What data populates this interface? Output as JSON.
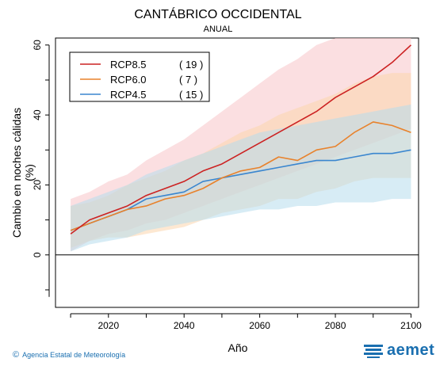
{
  "header": {
    "title": "CANTÁBRICO OCCIDENTAL",
    "subtitle": "ANUAL"
  },
  "footer": {
    "credit_symbol": "©",
    "credit": "Agencia Estatal de Meteorología",
    "logo": "aemet"
  },
  "colors": {
    "rcp85": "#cc2222",
    "rcp60": "#e8822c",
    "rcp45": "#3a86cf",
    "rcp85_band": "#f7c4c8",
    "rcp60_band": "#fbd6ad",
    "rcp45_band": "#b6dcec",
    "brand": "#1a6fb0"
  },
  "chart_data": {
    "type": "line",
    "xlabel": "Año",
    "ylabel": "Cambio en noches cálidas (%)",
    "xlim": [
      2006,
      2102
    ],
    "ylim": [
      -15,
      62
    ],
    "xticks": [
      2020,
      2040,
      2060,
      2080,
      2100
    ],
    "yticks": [
      0,
      20,
      40,
      60
    ],
    "zero_line": 0,
    "legend_position": "top-left",
    "series": [
      {
        "name": "RCP8.5",
        "count": "( 19 )",
        "color": "#cc2222",
        "x": [
          2010,
          2015,
          2020,
          2025,
          2030,
          2035,
          2040,
          2045,
          2050,
          2055,
          2060,
          2065,
          2070,
          2075,
          2080,
          2085,
          2090,
          2095,
          2100
        ],
        "y": [
          6,
          10,
          12,
          14,
          17,
          19,
          21,
          24,
          26,
          29,
          32,
          35,
          38,
          41,
          45,
          48,
          51,
          55,
          60
        ],
        "band_low": [
          1,
          4,
          6,
          7,
          9,
          10,
          12,
          14,
          16,
          18,
          20,
          22,
          24,
          26,
          28,
          30,
          32,
          34,
          36
        ],
        "band_high": [
          16,
          18,
          21,
          23,
          27,
          30,
          33,
          37,
          41,
          45,
          49,
          53,
          56,
          60,
          62,
          62,
          62,
          62,
          62
        ]
      },
      {
        "name": "RCP6.0",
        "count": "(   7 )",
        "color": "#e8822c",
        "x": [
          2010,
          2015,
          2020,
          2025,
          2030,
          2035,
          2040,
          2045,
          2050,
          2055,
          2060,
          2065,
          2070,
          2075,
          2080,
          2085,
          2090,
          2095,
          2100
        ],
        "y": [
          7,
          9,
          11,
          13,
          14,
          16,
          17,
          19,
          22,
          24,
          25,
          28,
          27,
          30,
          31,
          35,
          38,
          37,
          35
        ],
        "band_low": [
          2,
          4,
          5,
          5,
          6,
          7,
          8,
          10,
          12,
          13,
          14,
          16,
          16,
          18,
          19,
          21,
          22,
          22,
          22
        ],
        "band_high": [
          14,
          15,
          17,
          20,
          22,
          24,
          27,
          29,
          32,
          35,
          37,
          40,
          42,
          44,
          46,
          49,
          51,
          52,
          52
        ]
      },
      {
        "name": "RCP4.5",
        "count": "( 15 )",
        "color": "#3a86cf",
        "x": [
          2010,
          2015,
          2020,
          2025,
          2030,
          2035,
          2040,
          2045,
          2050,
          2055,
          2060,
          2065,
          2070,
          2075,
          2080,
          2085,
          2090,
          2095,
          2100
        ],
        "y": [
          7,
          9,
          11,
          13,
          16,
          17,
          18,
          21,
          22,
          23,
          24,
          25,
          26,
          27,
          27,
          28,
          29,
          29,
          30
        ],
        "band_low": [
          1,
          3,
          4,
          5,
          7,
          8,
          9,
          10,
          11,
          12,
          13,
          13,
          14,
          14,
          15,
          15,
          15,
          16,
          16
        ],
        "band_high": [
          14,
          16,
          18,
          20,
          23,
          25,
          27,
          29,
          31,
          33,
          35,
          36,
          37,
          38,
          39,
          40,
          41,
          42,
          43
        ]
      }
    ]
  }
}
